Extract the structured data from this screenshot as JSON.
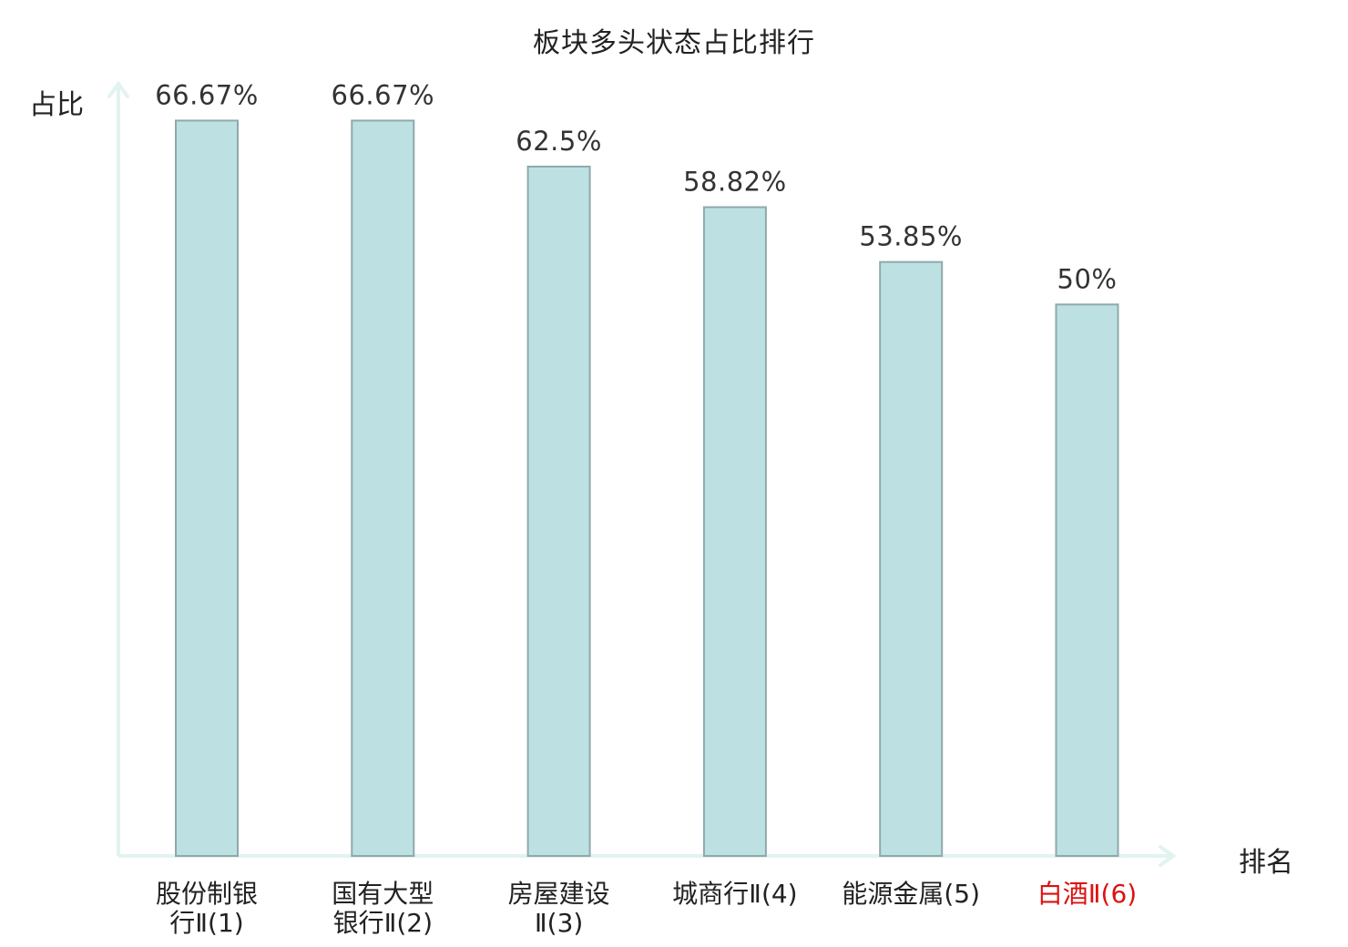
{
  "chart_data": {
    "type": "bar",
    "title": "板块多头状态占比排行",
    "ylabel": "占比",
    "xlabel": "排名",
    "categories": [
      [
        "股份制银",
        "行Ⅱ(1)"
      ],
      [
        "国有大型",
        "银行Ⅱ(2)"
      ],
      [
        "房屋建设",
        "Ⅱ(3)"
      ],
      [
        "城商行Ⅱ(4)"
      ],
      [
        "能源金属(5)"
      ],
      [
        "白酒Ⅱ(6)"
      ]
    ],
    "values": [
      66.67,
      66.67,
      62.5,
      58.82,
      53.85,
      50
    ],
    "value_labels": [
      "66.67%",
      "66.67%",
      "62.5%",
      "58.82%",
      "53.85%",
      "50%"
    ],
    "highlight_index": 5,
    "ylim": [
      0,
      70
    ],
    "grid": false,
    "legend": "none"
  },
  "colors": {
    "bar_fill": "#bde1e3",
    "bar_stroke": "#8fa9aa",
    "axis": "#e2f3f1",
    "text": "#222222",
    "highlight_text": "#dd1111"
  }
}
